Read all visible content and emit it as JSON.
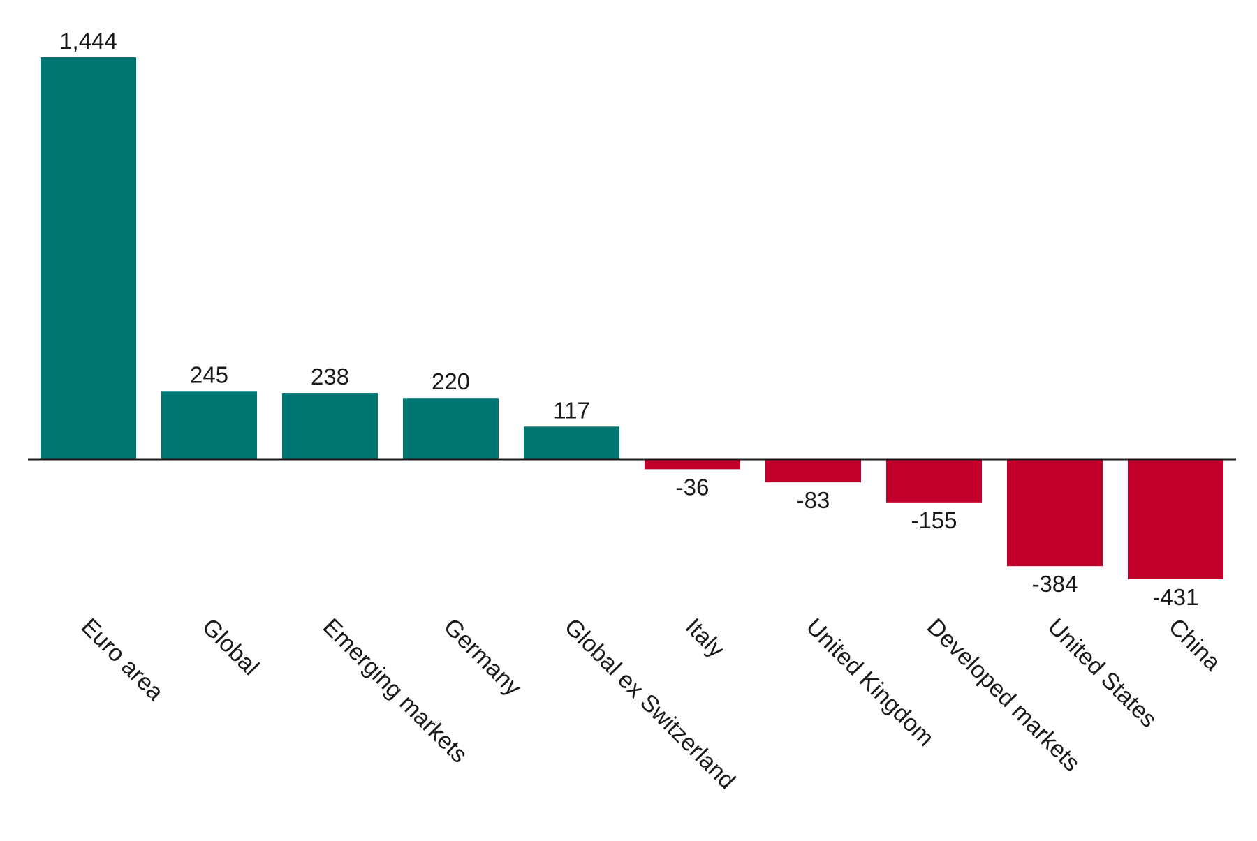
{
  "chart_data": {
    "type": "bar",
    "title": "",
    "xlabel": "",
    "ylabel": "",
    "categories": [
      "Euro area",
      "Global",
      "Emerging markets",
      "Germany",
      "Global ex Switzerland",
      "Italy",
      "United Kingdom",
      "Developed markets",
      "United States",
      "China"
    ],
    "values": [
      1444,
      245,
      238,
      220,
      117,
      -36,
      -83,
      -155,
      -384,
      -431
    ],
    "data_labels": [
      "1,444",
      "245",
      "238",
      "220",
      "117",
      "-36",
      "-83",
      "-155",
      "-384",
      "-431"
    ],
    "ylim": [
      -431,
      1444
    ],
    "grid": false,
    "legend": "none",
    "colors": {
      "positive": "#007672",
      "negative": "#c1002b",
      "axis": "#1a1a1a"
    }
  }
}
